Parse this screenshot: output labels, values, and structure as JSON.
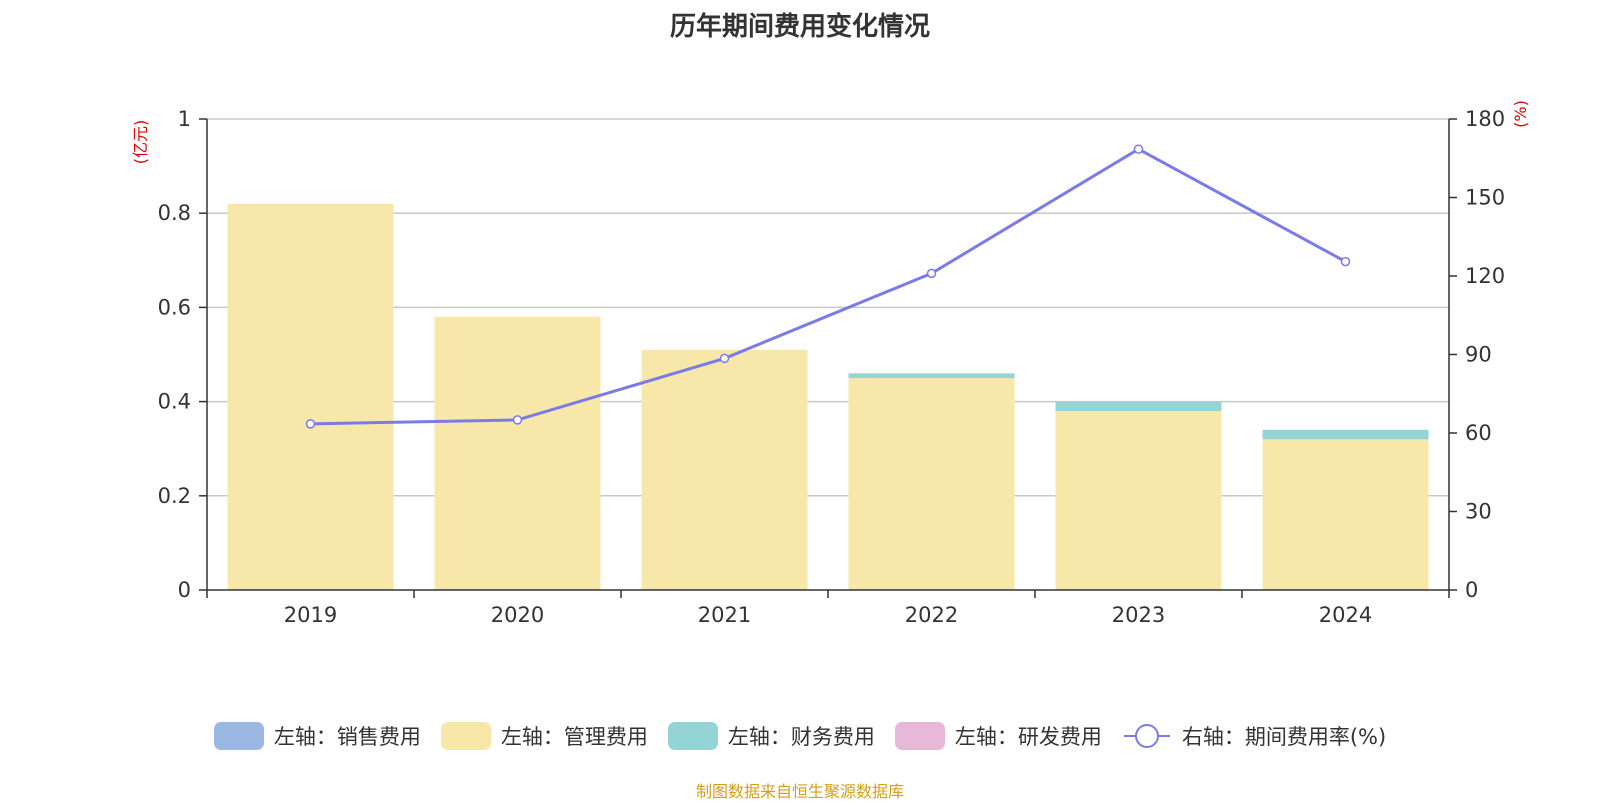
{
  "chart_data": {
    "type": "bar",
    "title": "历年期间费用变化情况",
    "categories": [
      "2019",
      "2020",
      "2021",
      "2022",
      "2023",
      "2024"
    ],
    "series": [
      {
        "name": "左轴：销售费用",
        "axis": "left",
        "stack": "fee",
        "color": "#9bb8e3",
        "values": [
          0,
          0,
          0,
          0,
          0,
          0
        ]
      },
      {
        "name": "左轴：管理费用",
        "axis": "left",
        "stack": "fee",
        "color": "#f7e7a8",
        "values": [
          0.82,
          0.58,
          0.51,
          0.45,
          0.38,
          0.32
        ]
      },
      {
        "name": "左轴：财务费用",
        "axis": "left",
        "stack": "fee",
        "color": "#95d4d4",
        "values": [
          0,
          0,
          0,
          0.01,
          0.02,
          0.02
        ]
      },
      {
        "name": "左轴：研发费用",
        "axis": "left",
        "stack": "fee",
        "color": "#e8b8d8",
        "values": [
          0,
          0,
          0,
          0,
          0,
          0
        ]
      },
      {
        "name": "右轴：期间费用率(%)",
        "axis": "right",
        "type": "line",
        "color": "#7b7be8",
        "values": [
          63.5,
          65,
          88.5,
          121,
          168.5,
          125.5
        ]
      }
    ],
    "left_axis": {
      "unit": "(亿元)",
      "ylim": [
        0,
        1
      ],
      "ticks": [
        "0",
        "0.2",
        "0.4",
        "0.6",
        "0.8",
        "1"
      ],
      "tick_values": [
        0,
        0.2,
        0.4,
        0.6,
        0.8,
        1
      ]
    },
    "right_axis": {
      "unit": "(%)",
      "ylim": [
        0,
        180
      ],
      "ticks": [
        "0",
        "30",
        "60",
        "90",
        "120",
        "150",
        "180"
      ],
      "tick_values": [
        0,
        30,
        60,
        90,
        120,
        150,
        180
      ]
    },
    "grid": true,
    "legend_position": "bottom"
  },
  "source": "制图数据来自恒生聚源数据库"
}
